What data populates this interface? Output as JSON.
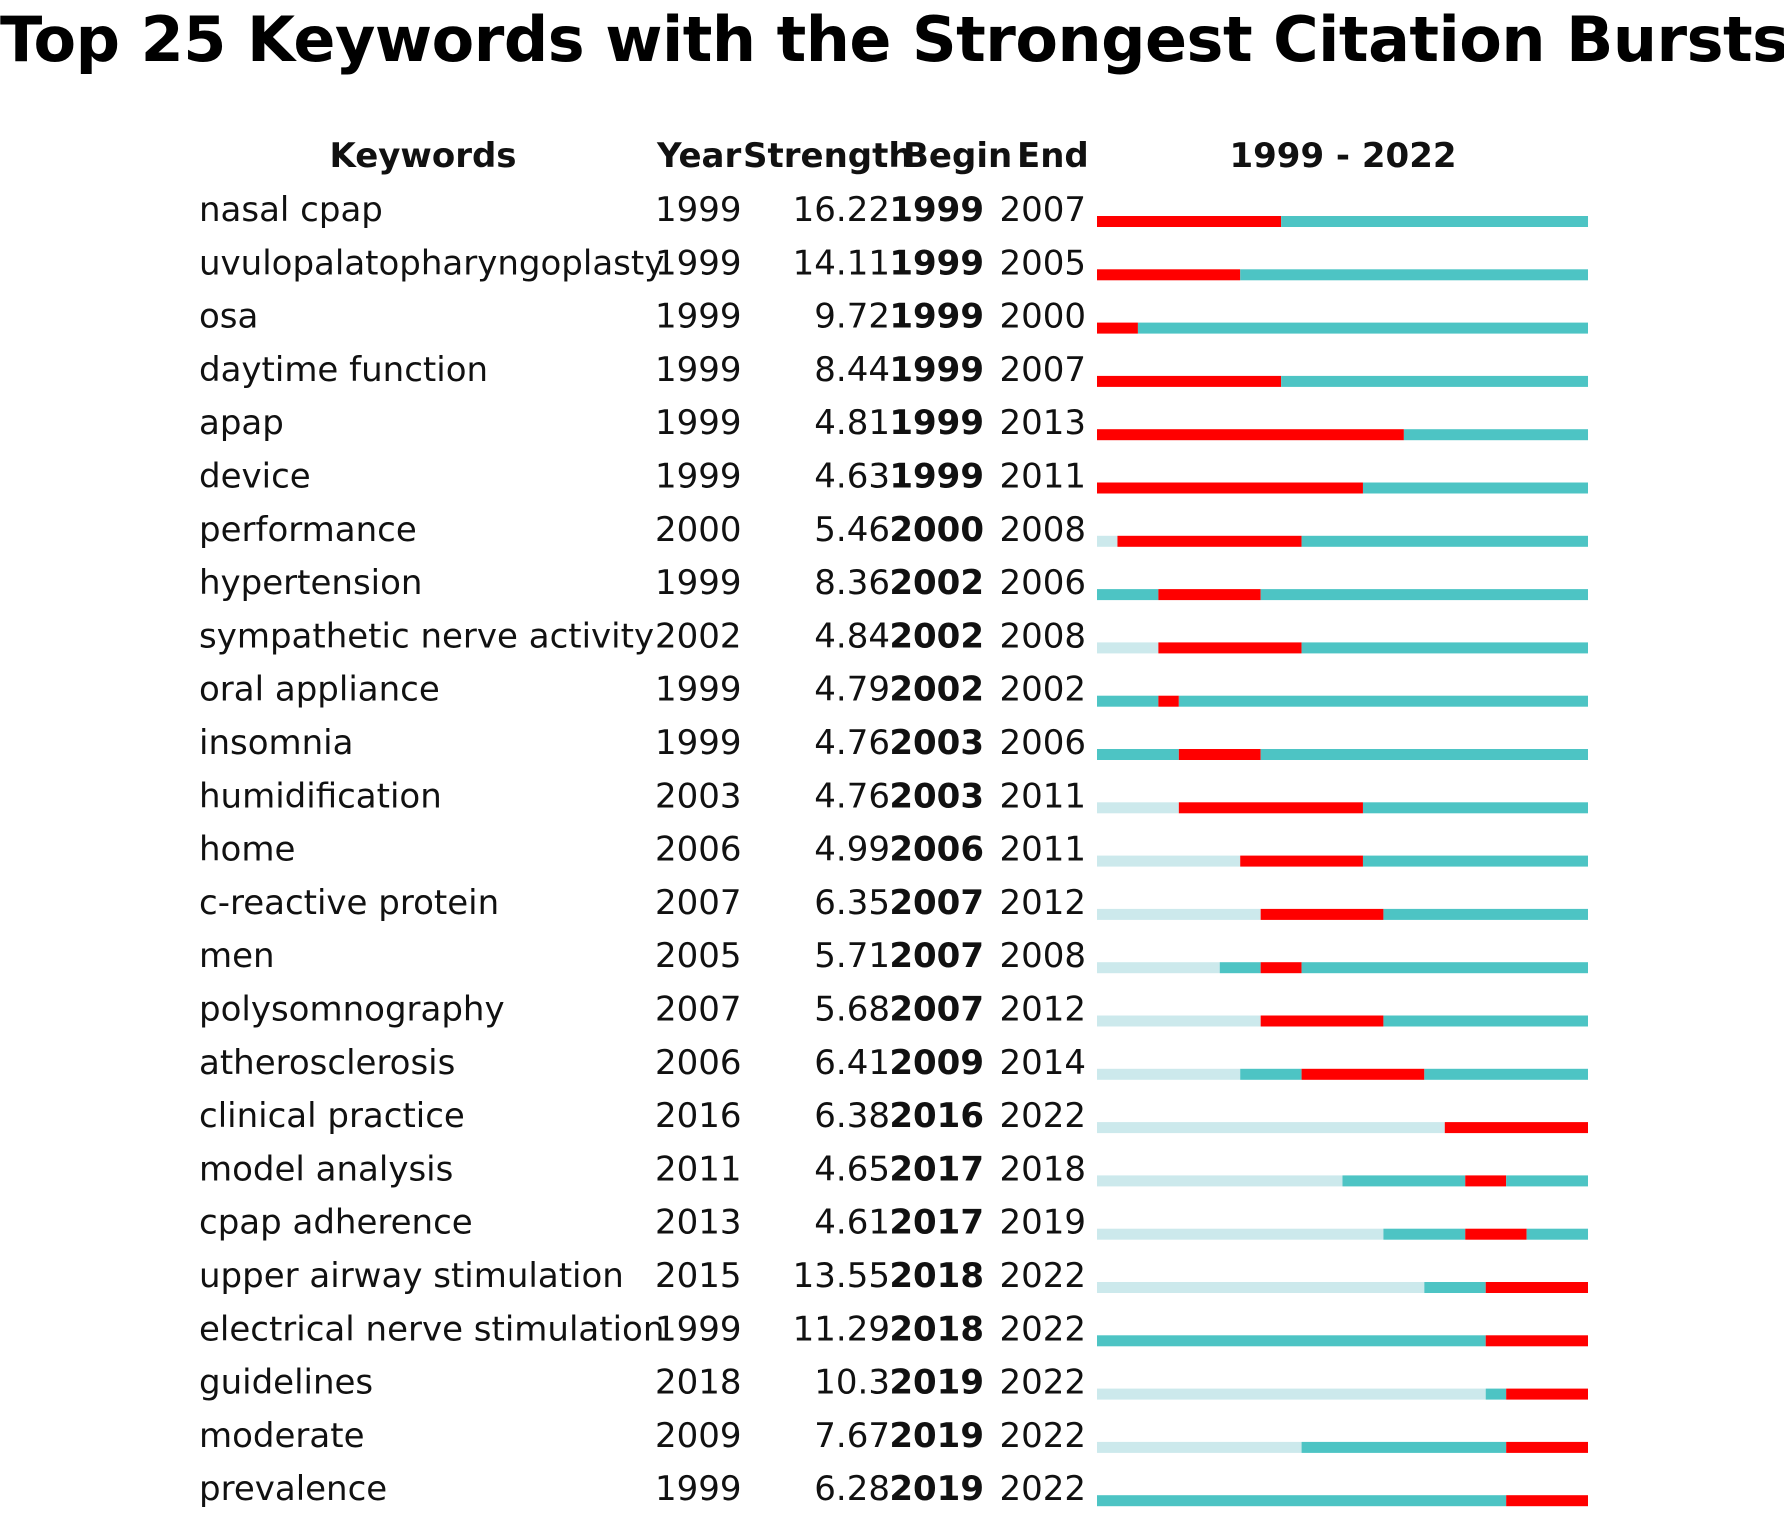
{
  "chart_data": {
    "type": "table",
    "title": "Top 25 Keywords with the Strongest Citation Bursts",
    "headers": {
      "keywords": "Keywords",
      "year": "Year",
      "strength": "Strength",
      "begin": "Begin",
      "end": "End",
      "range": "1999 - 2022"
    },
    "timeline": {
      "start": 1999,
      "end": 2022
    },
    "colors": {
      "burst": "#ff0000",
      "active": "#4dc4c4",
      "before": "#cce9ec"
    },
    "rows": [
      {
        "keyword": "nasal cpap",
        "year": 1999,
        "strength": "16.22",
        "begin": 1999,
        "end": 2007
      },
      {
        "keyword": "uvulopalatopharyngoplasty",
        "year": 1999,
        "strength": "14.11",
        "begin": 1999,
        "end": 2005
      },
      {
        "keyword": "osa",
        "year": 1999,
        "strength": "9.72",
        "begin": 1999,
        "end": 2000
      },
      {
        "keyword": "daytime function",
        "year": 1999,
        "strength": "8.44",
        "begin": 1999,
        "end": 2007
      },
      {
        "keyword": "apap",
        "year": 1999,
        "strength": "4.81",
        "begin": 1999,
        "end": 2013
      },
      {
        "keyword": "device",
        "year": 1999,
        "strength": "4.63",
        "begin": 1999,
        "end": 2011
      },
      {
        "keyword": "performance",
        "year": 2000,
        "strength": "5.46",
        "begin": 2000,
        "end": 2008
      },
      {
        "keyword": "hypertension",
        "year": 1999,
        "strength": "8.36",
        "begin": 2002,
        "end": 2006
      },
      {
        "keyword": "sympathetic nerve activity",
        "year": 2002,
        "strength": "4.84",
        "begin": 2002,
        "end": 2008
      },
      {
        "keyword": "oral appliance",
        "year": 1999,
        "strength": "4.79",
        "begin": 2002,
        "end": 2002
      },
      {
        "keyword": "insomnia",
        "year": 1999,
        "strength": "4.76",
        "begin": 2003,
        "end": 2006
      },
      {
        "keyword": "humidification",
        "year": 2003,
        "strength": "4.76",
        "begin": 2003,
        "end": 2011
      },
      {
        "keyword": "home",
        "year": 2006,
        "strength": "4.99",
        "begin": 2006,
        "end": 2011
      },
      {
        "keyword": "c-reactive protein",
        "year": 2007,
        "strength": "6.35",
        "begin": 2007,
        "end": 2012
      },
      {
        "keyword": "men",
        "year": 2005,
        "strength": "5.71",
        "begin": 2007,
        "end": 2008
      },
      {
        "keyword": "polysomnography",
        "year": 2007,
        "strength": "5.68",
        "begin": 2007,
        "end": 2012
      },
      {
        "keyword": "atherosclerosis",
        "year": 2006,
        "strength": "6.41",
        "begin": 2009,
        "end": 2014
      },
      {
        "keyword": "clinical practice",
        "year": 2016,
        "strength": "6.38",
        "begin": 2016,
        "end": 2022
      },
      {
        "keyword": "model analysis",
        "year": 2011,
        "strength": "4.65",
        "begin": 2017,
        "end": 2018
      },
      {
        "keyword": "cpap adherence",
        "year": 2013,
        "strength": "4.61",
        "begin": 2017,
        "end": 2019
      },
      {
        "keyword": "upper airway stimulation",
        "year": 2015,
        "strength": "13.55",
        "begin": 2018,
        "end": 2022
      },
      {
        "keyword": "electrical nerve stimulation",
        "year": 1999,
        "strength": "11.29",
        "begin": 2018,
        "end": 2022
      },
      {
        "keyword": "guidelines",
        "year": 2018,
        "strength": "10.3",
        "begin": 2019,
        "end": 2022
      },
      {
        "keyword": "moderate",
        "year": 2009,
        "strength": "7.67",
        "begin": 2019,
        "end": 2022
      },
      {
        "keyword": "prevalence",
        "year": 1999,
        "strength": "6.28",
        "begin": 2019,
        "end": 2022
      }
    ]
  }
}
